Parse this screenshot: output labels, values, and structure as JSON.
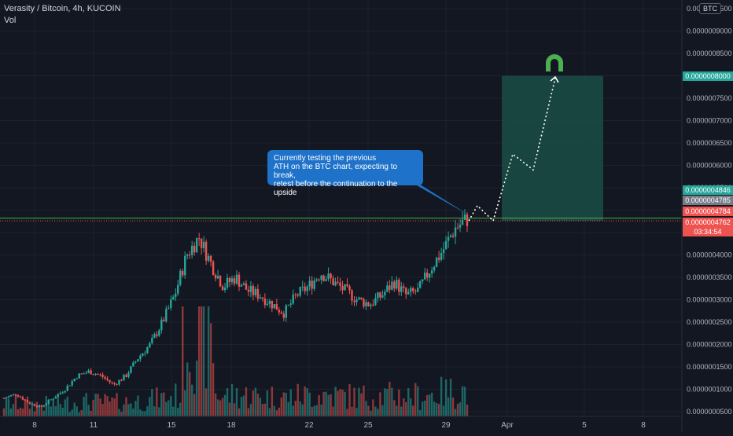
{
  "header": {
    "symbol": "Verasity / Bitcoin, 4h, KUCOIN",
    "volume_label": "Vol",
    "currency": "BTC"
  },
  "annotation": {
    "text": "Currently testing the previous\nATH on the BTC chart, expecting to break,\nretest before the continuation to the upside"
  },
  "price_tags": {
    "target": "0.0000008000",
    "high": "0.0000004846",
    "level": "0.0000004785",
    "entry": "0.0000004784",
    "last": "0.0000004762",
    "countdown": "03:34:54"
  },
  "colors": {
    "background": "#131722",
    "up": "#26a69a",
    "down": "#ef5350",
    "target_zone": "#1b4d47",
    "callout": "#1e72c9",
    "ath_line": "#4caf50",
    "tag_green": "#26a69a",
    "tag_gray": "#787b86",
    "tag_red": "#ef5350",
    "magnet_icon": "#4caf50"
  },
  "chart_data": {
    "type": "candlestick",
    "price_axis": {
      "ticks": [
        "0.0000009500",
        "0.0000009000",
        "0.0000008500",
        "0.0000008000",
        "0.0000007500",
        "0.0000007000",
        "0.0000006500",
        "0.0000006000",
        "0.0000005500",
        "0.0000005000",
        "0.0000004500",
        "0.0000004000",
        "0.0000003500",
        "0.0000003000",
        "0.0000002500",
        "0.0000002000",
        "0.0000001500",
        "0.0000001000",
        "0.0000000500"
      ]
    },
    "time_axis": {
      "ticks": [
        "8",
        "11",
        "15",
        "18",
        "22",
        "25",
        "29",
        "Apr",
        "5",
        "8"
      ]
    },
    "ath_level": 4.785e-07,
    "target_zone": {
      "low": 4.762e-07,
      "high": 8e-07
    },
    "projection_path": [
      4.762e-07,
      5.1e-07,
      4.762e-07,
      6.25e-07,
      5.9e-07,
      7.95e-07
    ],
    "price_keypoints": [
      8e-08,
      9e-08,
      7e-08,
      6e-08,
      8e-08,
      1e-07,
      1.3e-07,
      1.4e-07,
      1.3e-07,
      1.1e-07,
      1.3e-07,
      1.7e-07,
      2e-07,
      2.5e-07,
      3.1e-07,
      4e-07,
      4.4e-07,
      3.8e-07,
      3.3e-07,
      3.5e-07,
      3.2e-07,
      3.1e-07,
      2.9e-07,
      2.7e-07,
      3.1e-07,
      3.3e-07,
      3.6e-07,
      3.4e-07,
      3.2e-07,
      3e-07,
      2.9e-07,
      3.1e-07,
      3.4e-07,
      3.1e-07,
      3.2e-07,
      3.7e-07,
      4.1e-07,
      4.6e-07,
      4.8e-07
    ]
  }
}
